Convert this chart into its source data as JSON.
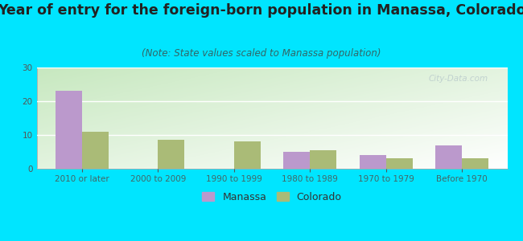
{
  "title": "Year of entry for the foreign-born population in Manassa, Colorado",
  "subtitle": "(Note: State values scaled to Manassa population)",
  "categories": [
    "2010 or later",
    "2000 to 2009",
    "1990 to 1999",
    "1980 to 1989",
    "1970 to 1979",
    "Before 1970"
  ],
  "manassa_values": [
    23,
    0,
    0,
    5,
    4,
    7
  ],
  "colorado_values": [
    11,
    8.5,
    8,
    5.5,
    3,
    3
  ],
  "manassa_color": "#bb99cc",
  "colorado_color": "#aabb77",
  "background_outer": "#00e5ff",
  "ylim": [
    0,
    30
  ],
  "yticks": [
    0,
    10,
    20,
    30
  ],
  "bar_width": 0.35,
  "title_fontsize": 12.5,
  "subtitle_fontsize": 8.5,
  "tick_fontsize": 7.5,
  "legend_fontsize": 9,
  "watermark_text": "City-Data.com",
  "watermark_color": "#bbcccc"
}
